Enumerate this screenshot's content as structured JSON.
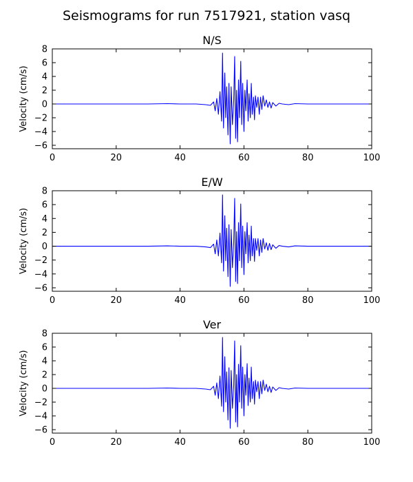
{
  "figure": {
    "title": "Seismograms for run 7517921, station vasq"
  },
  "chart_data": [
    {
      "type": "line",
      "title": "N/S",
      "xlabel": "",
      "ylabel": "Velocity (cm/s)",
      "xlim": [
        0,
        100
      ],
      "ylim": [
        -6.5,
        8
      ],
      "xticks": [
        0,
        20,
        40,
        60,
        80,
        100
      ],
      "yticks": [
        -6,
        -4,
        -2,
        0,
        2,
        4,
        6,
        8
      ],
      "line_color": "#0000ff",
      "series": [
        {
          "x": [
            0,
            10,
            20,
            30,
            36,
            40,
            45,
            48,
            49.5,
            50.5,
            51,
            51.5,
            52,
            52.5,
            53,
            53.3,
            53.6,
            54,
            54.3,
            54.6,
            55,
            55.3,
            55.7,
            56,
            56.4,
            56.8,
            57.1,
            57.4,
            57.7,
            58,
            58.3,
            58.6,
            59,
            59.3,
            59.6,
            60,
            60.3,
            60.6,
            61,
            61.3,
            61.6,
            62,
            62.3,
            62.6,
            63,
            63.3,
            63.6,
            64,
            64.4,
            64.8,
            65.2,
            65.6,
            66,
            66.5,
            67,
            67.5,
            68,
            68.5,
            69,
            70,
            71,
            72,
            74,
            76,
            80,
            85,
            90,
            95,
            100
          ],
          "y": [
            0,
            0,
            0,
            0,
            0.05,
            0,
            0,
            -0.1,
            -0.2,
            0.3,
            -1.0,
            0.8,
            -1.5,
            1.8,
            -2.5,
            7.4,
            -3.5,
            4.5,
            -2.0,
            2.5,
            -4.5,
            3.0,
            -5.8,
            2.5,
            -3.0,
            0.5,
            6.9,
            -5.0,
            2.0,
            -5.5,
            3.5,
            -2.0,
            6.2,
            -3.0,
            3.0,
            -4.0,
            2.0,
            -1.0,
            3.5,
            -2.5,
            1.5,
            -2.0,
            3.0,
            -1.5,
            1.0,
            -2.3,
            1.2,
            -0.5,
            1.0,
            -1.5,
            1.0,
            -0.8,
            1.2,
            -0.3,
            0.6,
            -0.5,
            0.3,
            -0.6,
            0.2,
            -0.3,
            0.1,
            0,
            -0.1,
            0.05,
            0,
            0,
            0,
            0,
            0
          ]
        }
      ]
    },
    {
      "type": "line",
      "title": "E/W",
      "xlabel": "",
      "ylabel": "Velocity (cm/s)",
      "xlim": [
        0,
        100
      ],
      "ylim": [
        -6.5,
        8
      ],
      "xticks": [
        0,
        20,
        40,
        60,
        80,
        100
      ],
      "yticks": [
        -6,
        -4,
        -2,
        0,
        2,
        4,
        6,
        8
      ],
      "line_color": "#0000ff",
      "series": [
        {
          "x": [
            0,
            10,
            20,
            30,
            36,
            40,
            45,
            48,
            49.5,
            50.5,
            51,
            51.5,
            52,
            52.5,
            53,
            53.3,
            53.6,
            54,
            54.3,
            54.6,
            55,
            55.3,
            55.7,
            56,
            56.4,
            56.8,
            57.1,
            57.4,
            57.7,
            58,
            58.3,
            58.6,
            59,
            59.3,
            59.6,
            60,
            60.3,
            60.6,
            61,
            61.3,
            61.6,
            62,
            62.3,
            62.6,
            63,
            63.3,
            63.6,
            64,
            64.4,
            64.8,
            65.2,
            65.6,
            66,
            66.5,
            67,
            67.5,
            68,
            68.5,
            69,
            70,
            71,
            72,
            74,
            76,
            80,
            85,
            90,
            95,
            100
          ],
          "y": [
            0,
            0,
            0,
            0,
            0.05,
            0,
            0,
            -0.1,
            -0.2,
            0.3,
            -1.1,
            0.9,
            -1.4,
            1.9,
            -2.4,
            7.4,
            -3.6,
            4.4,
            -2.1,
            2.6,
            -4.4,
            3.1,
            -5.8,
            2.4,
            -3.1,
            0.6,
            6.9,
            -5.1,
            2.1,
            -5.4,
            3.4,
            -2.1,
            6.1,
            -3.1,
            2.9,
            -4.1,
            2.1,
            -1.1,
            3.4,
            -2.4,
            1.6,
            -2.1,
            2.9,
            -1.4,
            1.1,
            -2.2,
            1.1,
            -0.6,
            1.1,
            -1.4,
            0.9,
            -0.9,
            1.1,
            -0.4,
            0.5,
            -0.6,
            0.4,
            -0.5,
            0.2,
            -0.3,
            0.1,
            0,
            -0.1,
            0.05,
            0,
            0,
            0,
            0,
            0
          ]
        }
      ]
    },
    {
      "type": "line",
      "title": "Ver",
      "xlabel": "",
      "ylabel": "Velocity (cm/s)",
      "xlim": [
        0,
        100
      ],
      "ylim": [
        -6.5,
        8
      ],
      "xticks": [
        0,
        20,
        40,
        60,
        80,
        100
      ],
      "yticks": [
        -6,
        -4,
        -2,
        0,
        2,
        4,
        6,
        8
      ],
      "line_color": "#0000ff",
      "series": [
        {
          "x": [
            0,
            10,
            20,
            30,
            36,
            40,
            45,
            48,
            49.5,
            50.5,
            51,
            51.5,
            52,
            52.5,
            53,
            53.3,
            53.6,
            54,
            54.3,
            54.6,
            55,
            55.3,
            55.7,
            56,
            56.4,
            56.8,
            57.1,
            57.4,
            57.7,
            58,
            58.3,
            58.6,
            59,
            59.3,
            59.6,
            60,
            60.3,
            60.6,
            61,
            61.3,
            61.6,
            62,
            62.3,
            62.6,
            63,
            63.3,
            63.6,
            64,
            64.4,
            64.8,
            65.2,
            65.6,
            66,
            66.5,
            67,
            67.5,
            68,
            68.5,
            69,
            70,
            71,
            72,
            74,
            76,
            80,
            85,
            90,
            95,
            100
          ],
          "y": [
            0,
            0,
            0,
            0,
            0.05,
            0,
            0,
            -0.1,
            -0.2,
            0.3,
            -1.0,
            0.8,
            -1.5,
            1.8,
            -2.6,
            7.4,
            -3.4,
            4.6,
            -2.0,
            2.4,
            -4.6,
            3.0,
            -5.8,
            2.6,
            -2.9,
            0.5,
            6.9,
            -4.9,
            2.0,
            -5.6,
            3.5,
            -2.0,
            6.2,
            -2.9,
            3.1,
            -4.0,
            2.0,
            -1.0,
            3.6,
            -2.5,
            1.5,
            -2.0,
            3.1,
            -1.5,
            1.0,
            -2.3,
            1.2,
            -0.5,
            1.0,
            -1.5,
            1.0,
            -0.8,
            1.2,
            -0.3,
            0.6,
            -0.5,
            0.3,
            -0.6,
            0.2,
            -0.3,
            0.1,
            0,
            -0.1,
            0.05,
            0,
            0,
            0,
            0,
            0
          ]
        }
      ]
    }
  ]
}
